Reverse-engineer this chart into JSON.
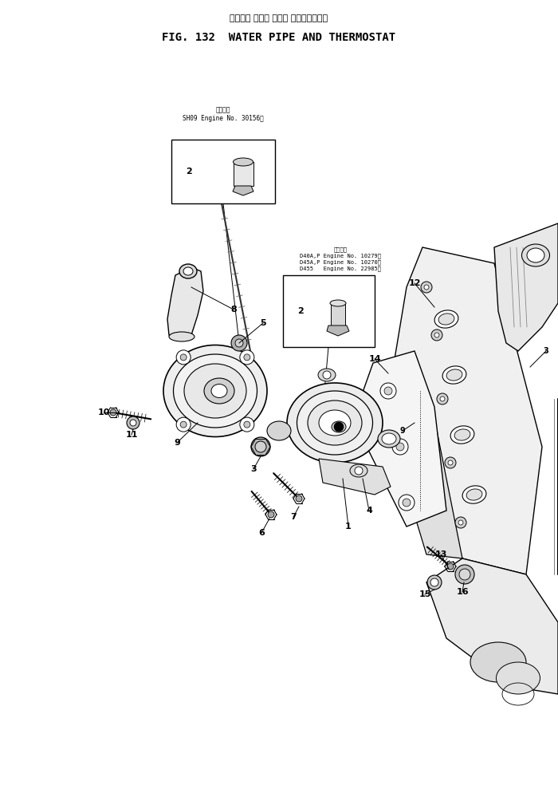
{
  "title_jp": "ウォータ パイプ および サーモスタット",
  "title_en": "FIG. 132  WATER PIPE AND THERMOSTAT",
  "bg_color": "#ffffff",
  "fig_width": 7.0,
  "fig_height": 9.89,
  "box1_text_above": "適用号機\nSH09 Engine No. 30156～",
  "box2_text_above": "適用号機\nD40A,P Engine No. 10279～\nD45A,P Engine No. 10270～\nD455   Engine No. 22985～",
  "lc": "black",
  "lw": 0.8
}
